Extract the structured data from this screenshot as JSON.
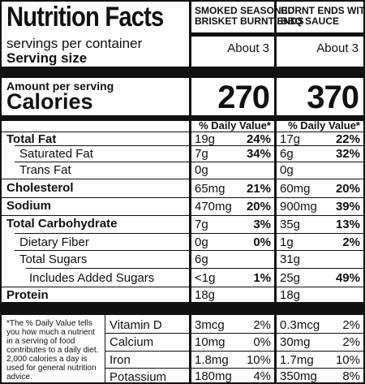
{
  "header": {
    "title": "Nutrition Facts",
    "servings_label": "servings per container",
    "serving_size_label": "Serving size"
  },
  "products": [
    {
      "name_line1": "SMOKED SEASONED",
      "name_line2": "BRISKET BURNT ENDS",
      "servings": "About 3",
      "calories": "270"
    },
    {
      "name_line1": "BURNT ENDS WITH",
      "name_line2": "BBQ SAUCE",
      "servings": "About 3",
      "calories": "370"
    }
  ],
  "calories_section": {
    "amount_label": "Amount per serving",
    "calories_label": "Calories",
    "dv_header": "% Daily Value*"
  },
  "nutrients": [
    {
      "label": "Total Fat",
      "p1_amount": "19g",
      "p1_dv": "24%",
      "p2_amount": "17g",
      "p2_dv": "22%"
    },
    {
      "label": "Saturated Fat",
      "p1_amount": "7g",
      "p1_dv": "34%",
      "p2_amount": "6g",
      "p2_dv": "32%"
    },
    {
      "label": "Trans Fat",
      "p1_amount": "0g",
      "p1_dv": "",
      "p2_amount": "0g",
      "p2_dv": ""
    },
    {
      "label": "Cholesterol",
      "p1_amount": "65mg",
      "p1_dv": "21%",
      "p2_amount": "60mg",
      "p2_dv": "20%"
    },
    {
      "label": "Sodium",
      "p1_amount": "470mg",
      "p1_dv": "20%",
      "p2_amount": "900mg",
      "p2_dv": "39%"
    },
    {
      "label": "Total Carbohydrate",
      "p1_amount": "7g",
      "p1_dv": "3%",
      "p2_amount": "35g",
      "p2_dv": "13%"
    },
    {
      "label": "Dietary Fiber",
      "p1_amount": "0g",
      "p1_dv": "0%",
      "p2_amount": "1g",
      "p2_dv": "2%"
    },
    {
      "label": "Total Sugars",
      "p1_amount": "6g",
      "p1_dv": "",
      "p2_amount": "31g",
      "p2_dv": ""
    },
    {
      "label": "Includes Added Sugars",
      "p1_amount": "<1g",
      "p1_dv": "1%",
      "p2_amount": "25g",
      "p2_dv": "49%"
    },
    {
      "label": "Protein",
      "p1_amount": "18g",
      "p1_dv": "",
      "p2_amount": "18g",
      "p2_dv": ""
    }
  ],
  "footnote": "*The % Daily Value tells you how much a nutrient in a serving of food contributes to a daily diet. 2,000 calories a day is used for general nutrition advice.",
  "micronutrients": [
    {
      "label": "Vitamin D",
      "p1_amount": "3mcg",
      "p1_dv": "2%",
      "p2_amount": "0.3mcg",
      "p2_dv": "2%"
    },
    {
      "label": "Calcium",
      "p1_amount": "10mg",
      "p1_dv": "0%",
      "p2_amount": "30mg",
      "p2_dv": "2%"
    },
    {
      "label": "Iron",
      "p1_amount": "1.8mg",
      "p1_dv": "10%",
      "p2_amount": "1.7mg",
      "p2_dv": "10%"
    },
    {
      "label": "Potassium",
      "p1_amount": "180mg",
      "p1_dv": "4%",
      "p2_amount": "350mg",
      "p2_dv": "8%"
    }
  ]
}
